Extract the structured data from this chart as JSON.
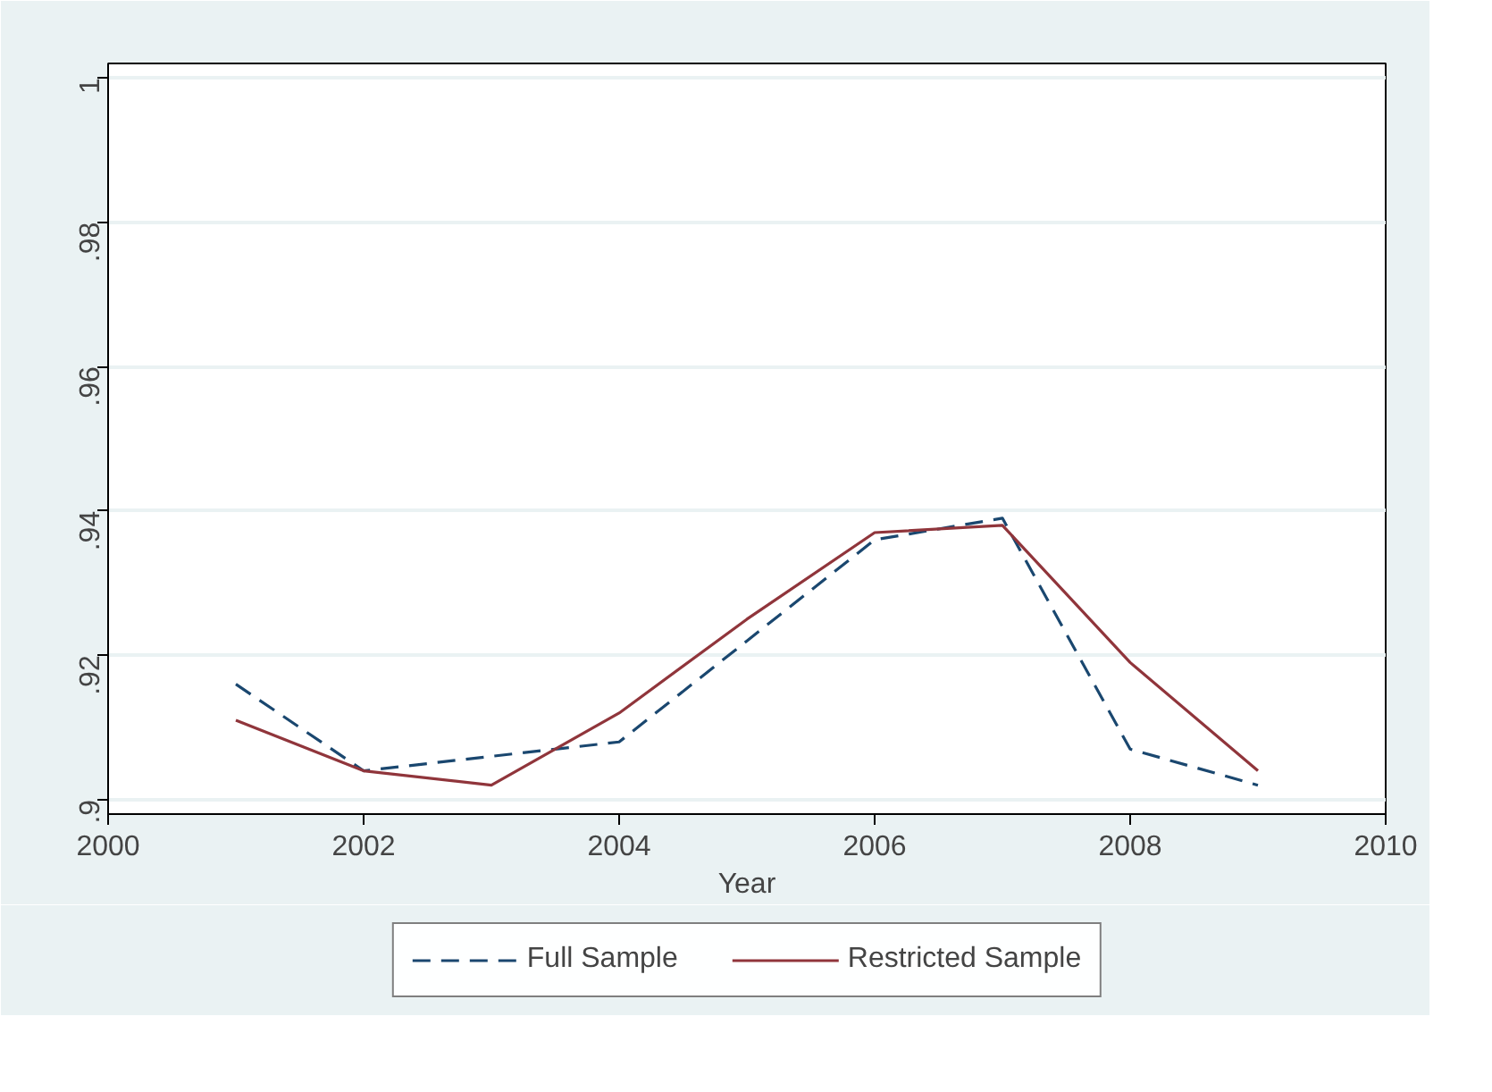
{
  "chart_data": {
    "type": "line",
    "xlabel": "Year",
    "x": [
      2001,
      2002,
      2003,
      2004,
      2005,
      2006,
      2007,
      2008,
      2009
    ],
    "series": [
      {
        "name": "Full Sample",
        "color": "#1a476f",
        "line_style": "dashed",
        "values": [
          0.916,
          0.904,
          0.906,
          0.908,
          0.922,
          0.936,
          0.939,
          0.907,
          0.902
        ]
      },
      {
        "name": "Restricted Sample",
        "color": "#90353b",
        "line_style": "solid",
        "values": [
          0.911,
          0.904,
          0.902,
          0.912,
          0.925,
          0.937,
          0.938,
          0.919,
          0.904
        ]
      }
    ],
    "xlim": [
      2000,
      2010
    ],
    "xticks": [
      2000,
      2002,
      2004,
      2006,
      2008,
      2010
    ],
    "ylim": [
      0.898,
      1.002
    ],
    "yticks": [
      {
        "value": 0.9,
        "label": ".9"
      },
      {
        "value": 0.92,
        "label": ".92"
      },
      {
        "value": 0.94,
        "label": ".94"
      },
      {
        "value": 0.96,
        "label": ".96"
      },
      {
        "value": 0.98,
        "label": ".98"
      },
      {
        "value": 1,
        "label": "1"
      }
    ],
    "grid": "y",
    "legend": "bottom",
    "marker": "none"
  }
}
